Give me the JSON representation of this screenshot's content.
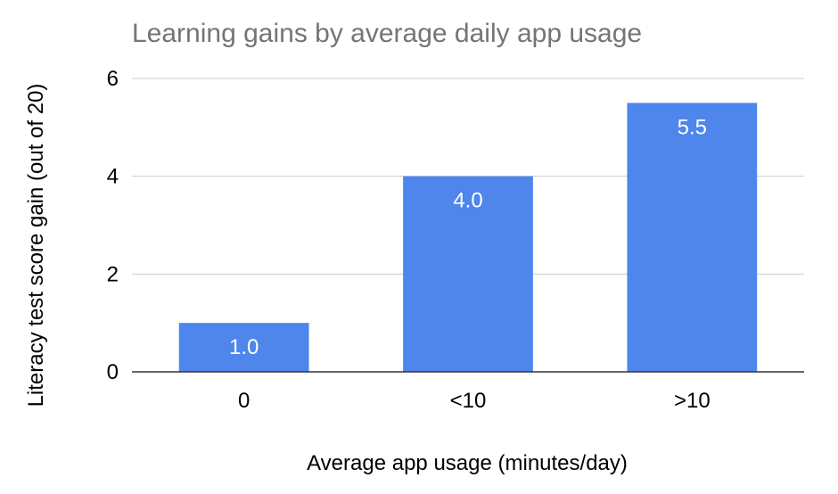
{
  "chart_data": {
    "type": "bar",
    "title": "Learning gains by average daily app usage",
    "xlabel": "Average app usage (minutes/day)",
    "ylabel": "Literacy test score gain (out of 20)",
    "categories": [
      "0",
      "<10",
      ">10"
    ],
    "values": [
      1.0,
      4.0,
      5.5
    ],
    "value_labels": [
      "1.0",
      "4.0",
      "5.5"
    ],
    "yticks": [
      "0",
      "2",
      "4",
      "6"
    ],
    "ytick_values": [
      0,
      2,
      4,
      6
    ],
    "ylim": [
      0,
      6
    ],
    "grid": true,
    "legend": "none",
    "bar_color": "#4f86ec"
  }
}
